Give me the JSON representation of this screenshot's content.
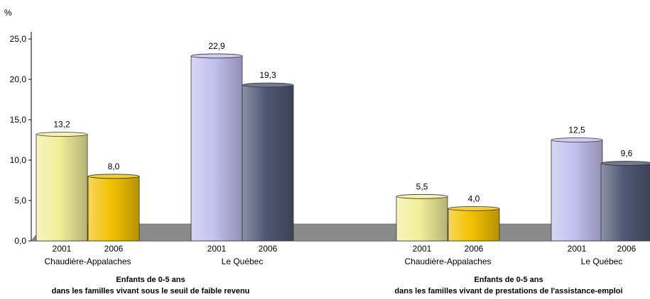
{
  "chart_data": {
    "type": "bar",
    "unit": "%",
    "ylim": [
      0,
      25
    ],
    "yticks": [
      "0,0",
      "5,0",
      "10,0",
      "15,0",
      "20,0",
      "25,0"
    ],
    "groups": [
      {
        "title_line1": "Enfants de 0-5 ans",
        "title_line2": "dans les familles vivant sous le seuil de faible revenu",
        "regions": [
          {
            "name": "Chaudière-Appalaches",
            "bars": [
              {
                "year": "2001",
                "value": 13.2,
                "label": "13,2",
                "color": "#f2ee9a"
              },
              {
                "year": "2006",
                "value": 8.0,
                "label": "8,0",
                "color": "#f2c200"
              }
            ]
          },
          {
            "name": "Le Québec",
            "bars": [
              {
                "year": "2001",
                "value": 22.9,
                "label": "22,9",
                "color": "#c2c0ee"
              },
              {
                "year": "2006",
                "value": 19.3,
                "label": "19,3",
                "color": "#4f5874"
              }
            ]
          }
        ]
      },
      {
        "title_line1": "Enfants de 0-5 ans",
        "title_line2": "dans les familles vivant de prestations de l'assistance-emploi",
        "regions": [
          {
            "name": "Chaudière-Appalaches",
            "bars": [
              {
                "year": "2001",
                "value": 5.5,
                "label": "5,5",
                "color": "#f2ee9a"
              },
              {
                "year": "2006",
                "value": 4.0,
                "label": "4,0",
                "color": "#f2c200"
              }
            ]
          },
          {
            "name": "Le Québec",
            "bars": [
              {
                "year": "2001",
                "value": 12.5,
                "label": "12,5",
                "color": "#c2c0ee"
              },
              {
                "year": "2006",
                "value": 9.6,
                "label": "9,6",
                "color": "#4f5874"
              }
            ]
          }
        ]
      }
    ],
    "floor_color": "#8a8a8a",
    "title_color": "#f07a10"
  }
}
